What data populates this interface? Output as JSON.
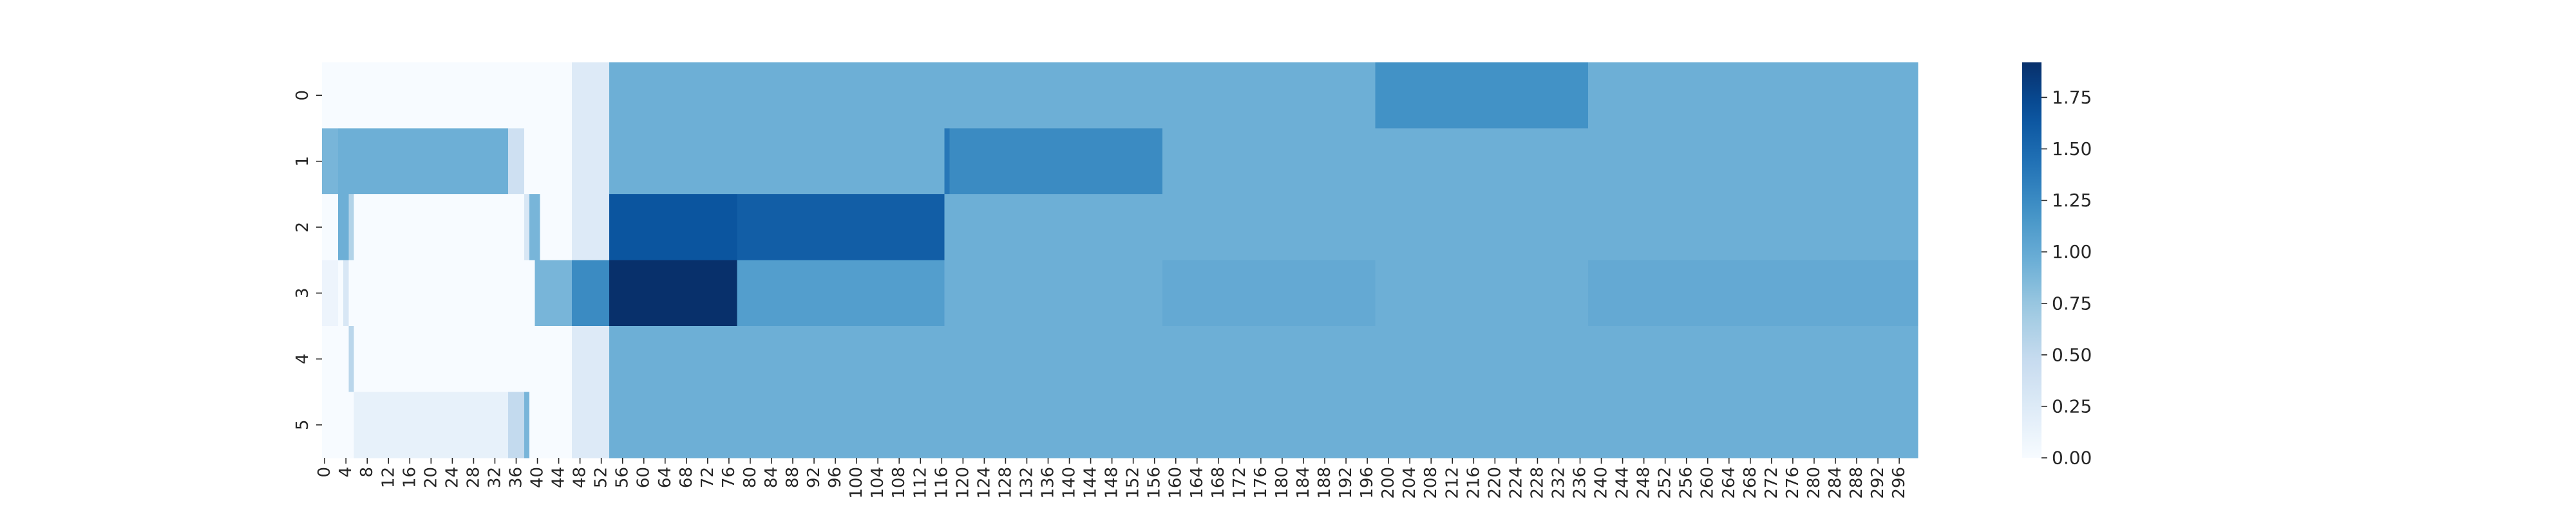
{
  "chart_data": {
    "type": "heatmap",
    "title": "",
    "xlabel": "",
    "ylabel": "",
    "x": [
      0,
      300
    ],
    "rows": [
      "0",
      "1",
      "2",
      "3",
      "4",
      "5"
    ],
    "x_tick_labels": [
      "0",
      "4",
      "8",
      "12",
      "16",
      "20",
      "24",
      "28",
      "32",
      "36",
      "40",
      "44",
      "48",
      "52",
      "56",
      "60",
      "64",
      "68",
      "72",
      "76",
      "80",
      "84",
      "88",
      "92",
      "96",
      "100",
      "104",
      "108",
      "112",
      "116",
      "120",
      "124",
      "128",
      "132",
      "136",
      "140",
      "144",
      "148",
      "152",
      "156",
      "160",
      "164",
      "168",
      "172",
      "176",
      "180",
      "184",
      "188",
      "192",
      "196",
      "200",
      "204",
      "208",
      "212",
      "216",
      "220",
      "224",
      "228",
      "232",
      "236",
      "240",
      "244",
      "248",
      "252",
      "256",
      "260",
      "264",
      "268",
      "272",
      "276",
      "280",
      "284",
      "288",
      "292",
      "296"
    ],
    "y_tick_labels": [
      "0",
      "1",
      "2",
      "3",
      "4",
      "5"
    ],
    "colorbar": {
      "min": 0.0,
      "max": 1.92,
      "ticks": [
        0.0,
        0.25,
        0.5,
        0.75,
        1.0,
        1.25,
        1.5,
        1.75
      ],
      "tick_labels": [
        "0.00",
        "0.25",
        "0.50",
        "0.75",
        "1.00",
        "1.25",
        "1.50",
        "1.75"
      ],
      "colormap": "Blues"
    },
    "segments": [
      [
        {
          "start": 0,
          "end": 47,
          "value": 0.0
        },
        {
          "start": 47,
          "end": 54,
          "value": 0.25
        },
        {
          "start": 54,
          "end": 198,
          "value": 0.95
        },
        {
          "start": 198,
          "end": 238,
          "value": 1.2
        },
        {
          "start": 238,
          "end": 300,
          "value": 0.95
        }
      ],
      [
        {
          "start": 0,
          "end": 3,
          "value": 0.9
        },
        {
          "start": 3,
          "end": 35,
          "value": 0.95
        },
        {
          "start": 35,
          "end": 38,
          "value": 0.4
        },
        {
          "start": 38,
          "end": 47,
          "value": 0.0
        },
        {
          "start": 47,
          "end": 54,
          "value": 0.25
        },
        {
          "start": 54,
          "end": 117,
          "value": 0.95
        },
        {
          "start": 117,
          "end": 118,
          "value": 1.4
        },
        {
          "start": 118,
          "end": 158,
          "value": 1.25
        },
        {
          "start": 158,
          "end": 300,
          "value": 0.95
        }
      ],
      [
        {
          "start": 0,
          "end": 3,
          "value": 0.0
        },
        {
          "start": 3,
          "end": 5,
          "value": 0.95
        },
        {
          "start": 5,
          "end": 6,
          "value": 0.6
        },
        {
          "start": 6,
          "end": 38,
          "value": 0.0
        },
        {
          "start": 38,
          "end": 39,
          "value": 0.3
        },
        {
          "start": 39,
          "end": 41,
          "value": 0.9
        },
        {
          "start": 41,
          "end": 47,
          "value": 0.0
        },
        {
          "start": 47,
          "end": 54,
          "value": 0.25
        },
        {
          "start": 54,
          "end": 78,
          "value": 1.65
        },
        {
          "start": 78,
          "end": 117,
          "value": 1.58
        },
        {
          "start": 117,
          "end": 300,
          "value": 0.95
        }
      ],
      [
        {
          "start": 0,
          "end": 3,
          "value": 0.1
        },
        {
          "start": 3,
          "end": 4,
          "value": 0.0
        },
        {
          "start": 4,
          "end": 5,
          "value": 0.3
        },
        {
          "start": 5,
          "end": 40,
          "value": 0.0
        },
        {
          "start": 40,
          "end": 47,
          "value": 0.9
        },
        {
          "start": 47,
          "end": 54,
          "value": 1.25
        },
        {
          "start": 54,
          "end": 78,
          "value": 1.92
        },
        {
          "start": 78,
          "end": 117,
          "value": 1.1
        },
        {
          "start": 117,
          "end": 158,
          "value": 0.95
        },
        {
          "start": 158,
          "end": 198,
          "value": 1.0
        },
        {
          "start": 198,
          "end": 238,
          "value": 0.95
        },
        {
          "start": 238,
          "end": 300,
          "value": 1.0
        }
      ],
      [
        {
          "start": 0,
          "end": 5,
          "value": 0.0
        },
        {
          "start": 5,
          "end": 6,
          "value": 0.55
        },
        {
          "start": 6,
          "end": 47,
          "value": 0.0
        },
        {
          "start": 47,
          "end": 54,
          "value": 0.25
        },
        {
          "start": 54,
          "end": 300,
          "value": 0.95
        }
      ],
      [
        {
          "start": 0,
          "end": 6,
          "value": 0.0
        },
        {
          "start": 6,
          "end": 35,
          "value": 0.15
        },
        {
          "start": 35,
          "end": 38,
          "value": 0.5
        },
        {
          "start": 38,
          "end": 39,
          "value": 0.9
        },
        {
          "start": 39,
          "end": 47,
          "value": 0.0
        },
        {
          "start": 47,
          "end": 54,
          "value": 0.25
        },
        {
          "start": 54,
          "end": 300,
          "value": 0.95
        }
      ]
    ]
  }
}
